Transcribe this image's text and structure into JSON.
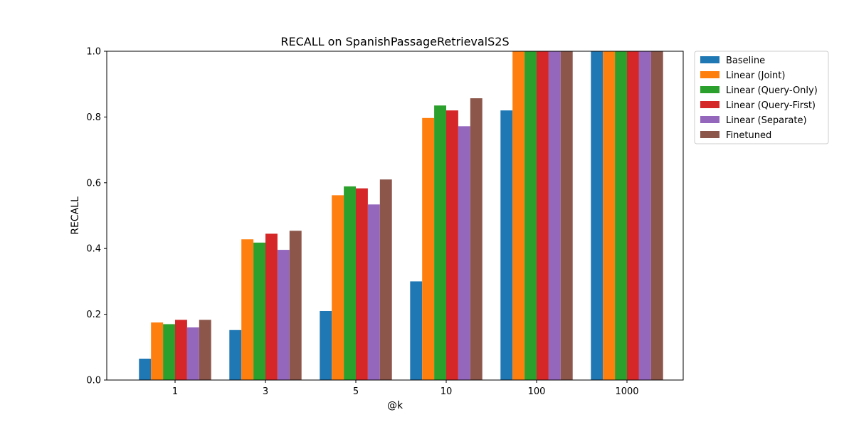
{
  "chart_data": {
    "type": "bar",
    "title": "RECALL on SpanishPassageRetrievalS2S",
    "xlabel": "@k",
    "ylabel": "RECALL",
    "ylim": [
      0,
      1.0
    ],
    "yticks": [
      "0.0",
      "0.2",
      "0.4",
      "0.6",
      "0.8",
      "1.0"
    ],
    "grid": false,
    "legend_position": "outside-top-right",
    "categories": [
      "1",
      "3",
      "5",
      "10",
      "100",
      "1000"
    ],
    "series": [
      {
        "name": "Baseline",
        "color": "#1f77b4",
        "values": [
          0.065,
          0.152,
          0.21,
          0.3,
          0.82,
          1.0
        ]
      },
      {
        "name": "Linear (Joint)",
        "color": "#ff7f0e",
        "values": [
          0.175,
          0.428,
          0.562,
          0.797,
          1.0,
          1.0
        ]
      },
      {
        "name": "Linear (Query-Only)",
        "color": "#2ca02c",
        "values": [
          0.17,
          0.418,
          0.589,
          0.835,
          1.0,
          1.0
        ]
      },
      {
        "name": "Linear (Query-First)",
        "color": "#d62728",
        "values": [
          0.183,
          0.445,
          0.583,
          0.82,
          1.0,
          1.0
        ]
      },
      {
        "name": "Linear (Separate)",
        "color": "#9467bd",
        "values": [
          0.16,
          0.396,
          0.534,
          0.772,
          1.0,
          1.0
        ]
      },
      {
        "name": "Finetuned",
        "color": "#8c564b",
        "values": [
          0.183,
          0.454,
          0.61,
          0.857,
          1.0,
          1.0
        ]
      }
    ]
  }
}
